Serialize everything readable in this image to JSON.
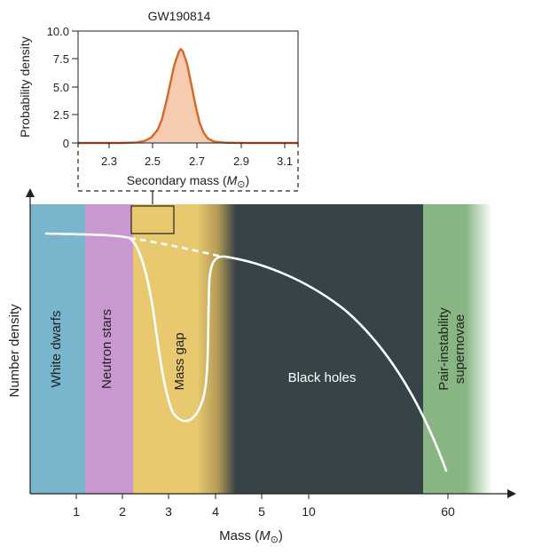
{
  "chart_data": [
    {
      "type": "area",
      "title": "GW190814",
      "xlabel": "Secondary mass (",
      "xlabel_unit": "M",
      "xlabel_close": ")",
      "ylabel": "Probability density",
      "xlim": [
        2.1,
        3.15
      ],
      "ylim": [
        0,
        10
      ],
      "xticks": [
        "2.3",
        "2.5",
        "2.7",
        "2.9",
        "3.1"
      ],
      "yticks": [
        "0",
        "2.5",
        "5.0",
        "7.5",
        "10.0"
      ],
      "series": [
        {
          "x": [
            2.3,
            2.38,
            2.42,
            2.45,
            2.48,
            2.5,
            2.52,
            2.54,
            2.56,
            2.58,
            2.59,
            2.6,
            2.62,
            2.64,
            2.66,
            2.68,
            2.7,
            2.72,
            2.75,
            2.8,
            2.9
          ],
          "y": [
            0.0,
            0.05,
            0.2,
            0.5,
            1.2,
            2.1,
            3.6,
            5.3,
            7.0,
            8.1,
            8.4,
            8.2,
            7.1,
            5.3,
            3.4,
            1.8,
            0.9,
            0.4,
            0.12,
            0.02,
            0.0
          ]
        }
      ],
      "colors": {
        "line": "#d4682a",
        "fill": "#f6cbb0"
      }
    },
    {
      "type": "line",
      "xlabel": "Mass (",
      "xlabel_unit": "M",
      "xlabel_close": ")",
      "ylabel": "Number density",
      "xticks": [
        "1",
        "2",
        "3",
        "4",
        "5",
        "10",
        "60"
      ],
      "regions": [
        {
          "label": "White dwarfs",
          "color": "#79b5cc"
        },
        {
          "label": "Neutron stars",
          "color": "#c998d0"
        },
        {
          "label": "Mass gap",
          "color": "#e8c96f"
        },
        {
          "label": "Black holes",
          "color": "#364347"
        },
        {
          "label_lines": [
            "Pair-instability",
            "supernovae"
          ],
          "color": "#88b683"
        }
      ]
    }
  ]
}
